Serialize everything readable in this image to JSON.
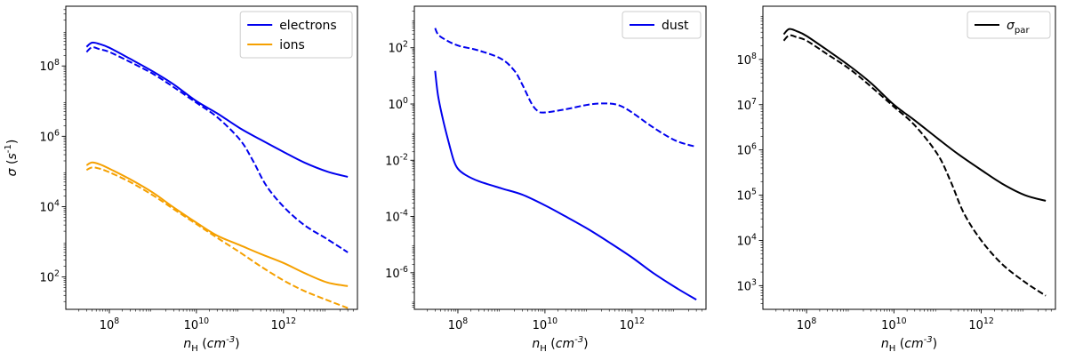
{
  "chart_data": [
    {
      "type": "line",
      "xlabel": "n_H (cm^-3)",
      "ylabel": "σ (s^-1)",
      "xscale": "log",
      "yscale": "log",
      "xlim": [
        10000000.0,
        50000000000000.0
      ],
      "ylim": [
        12.0,
        5000000000.0
      ],
      "xticks": [
        {
          "label": "10^8",
          "value": 100000000.0
        },
        {
          "label": "10^10",
          "value": 10000000000.0
        },
        {
          "label": "10^12",
          "value": 1000000000000.0
        }
      ],
      "yticks": [
        {
          "label": "10^2",
          "value": 100
        },
        {
          "label": "10^4",
          "value": 10000
        },
        {
          "label": "10^6",
          "value": 1000000
        },
        {
          "label": "10^8",
          "value": 100000000
        }
      ],
      "legend": {
        "position": "top-right",
        "entries": [
          {
            "label": "electrons",
            "color": "#0000ee",
            "style": "solid"
          },
          {
            "label": "ions",
            "color": "#f5a000",
            "style": "solid"
          }
        ]
      },
      "series": [
        {
          "name": "electrons",
          "color": "#0000ee",
          "dash": false,
          "x": [
            30000000.0,
            40000000.0,
            60000000.0,
            100000000.0,
            300000000.0,
            1000000000.0,
            3000000000.0,
            10000000000.0,
            30000000000.0,
            100000000000.0,
            300000000000.0,
            1000000000000.0,
            3000000000000.0,
            10000000000000.0,
            30000000000000.0
          ],
          "y": [
            350000000.0,
            460000000.0,
            420000000.0,
            330000000.0,
            160000000.0,
            70000000.0,
            30000000.0,
            10000000.0,
            4500000.0,
            1700000.0,
            800000.0,
            360000.0,
            180000.0,
            100000.0,
            70000.0
          ]
        },
        {
          "name": "electrons",
          "color": "#0000ee",
          "dash": true,
          "x": [
            30000000.0,
            40000000.0,
            60000000.0,
            100000000.0,
            300000000.0,
            1000000000.0,
            3000000000.0,
            10000000000.0,
            30000000000.0,
            100000000000.0,
            200000000000.0,
            400000000000.0,
            1000000000000.0,
            3000000000000.0,
            10000000000000.0,
            30000000000000.0
          ],
          "y": [
            250000000.0,
            340000000.0,
            300000000.0,
            250000000.0,
            130000000.0,
            60000000.0,
            25000000.0,
            9000000.0,
            3500000.0,
            800000.0,
            200000.0,
            40000.0,
            10000.0,
            3000.0,
            1200.0,
            500.0
          ]
        },
        {
          "name": "ions",
          "color": "#f5a000",
          "dash": false,
          "x": [
            30000000.0,
            40000000.0,
            60000000.0,
            100000000.0,
            300000000.0,
            1000000000.0,
            3000000000.0,
            10000000000.0,
            30000000000.0,
            100000000000.0,
            300000000000.0,
            1000000000000.0,
            3000000000000.0,
            10000000000000.0,
            30000000000000.0
          ],
          "y": [
            150000.0,
            180000.0,
            160000.0,
            120000.0,
            60000.0,
            25000.0,
            9500.0,
            3500.0,
            1500.0,
            800.0,
            450.0,
            250.0,
            130.0,
            70.0,
            55.0
          ]
        },
        {
          "name": "ions",
          "color": "#f5a000",
          "dash": true,
          "x": [
            30000000.0,
            40000000.0,
            60000000.0,
            100000000.0,
            300000000.0,
            1000000000.0,
            3000000000.0,
            10000000000.0,
            30000000000.0,
            100000000000.0,
            300000000000.0,
            1000000000000.0,
            3000000000000.0,
            10000000000000.0,
            30000000000000.0
          ],
          "y": [
            110000.0,
            130000.0,
            120000.0,
            95000.0,
            50000.0,
            21000.0,
            8500.0,
            3200.0,
            1300.0,
            500.0,
            200.0,
            80.0,
            40.0,
            22.0,
            13.0
          ]
        }
      ]
    },
    {
      "type": "line",
      "xlabel": "n_H (cm^-3)",
      "xscale": "log",
      "yscale": "log",
      "xlim": [
        10000000.0,
        50000000000000.0
      ],
      "ylim": [
        5e-08,
        3000.0
      ],
      "xticks": [
        {
          "label": "10^8",
          "value": 100000000.0
        },
        {
          "label": "10^10",
          "value": 10000000000.0
        },
        {
          "label": "10^12",
          "value": 1000000000000.0
        }
      ],
      "yticks": [
        {
          "label": "10^-6",
          "value": 1e-06
        },
        {
          "label": "10^-4",
          "value": 0.0001
        },
        {
          "label": "10^-2",
          "value": 0.01
        },
        {
          "label": "10^0",
          "value": 1
        },
        {
          "label": "10^2",
          "value": 100
        }
      ],
      "legend": {
        "position": "top-right",
        "entries": [
          {
            "label": "dust",
            "color": "#0000ee",
            "style": "solid"
          }
        ]
      },
      "series": [
        {
          "name": "dust",
          "color": "#0000ee",
          "dash": false,
          "x": [
            30000000.0,
            35000000.0,
            45000000.0,
            60000000.0,
            80000000.0,
            100000000.0,
            150000000.0,
            300000000.0,
            1000000000.0,
            3000000000.0,
            10000000000.0,
            30000000000.0,
            100000000000.0,
            300000000000.0,
            1000000000000.0,
            3000000000000.0,
            10000000000000.0,
            30000000000000.0
          ],
          "y": [
            15.0,
            2.0,
            0.3,
            0.05,
            0.01,
            0.005,
            0.003,
            0.0018,
            0.001,
            0.0006,
            0.00025,
            0.0001,
            3.5e-05,
            1.2e-05,
            3.5e-06,
            1e-06,
            3e-07,
            1.1e-07
          ]
        },
        {
          "name": "dust",
          "color": "#0000ee",
          "dash": true,
          "x": [
            30000000.0,
            35000000.0,
            50000000.0,
            100000000.0,
            300000000.0,
            1000000000.0,
            2000000000.0,
            3000000000.0,
            5000000000.0,
            7000000000.0,
            10000000000.0,
            30000000000.0,
            100000000000.0,
            250000000000.0,
            500000000000.0,
            1000000000000.0,
            3000000000000.0,
            10000000000000.0,
            30000000000000.0
          ],
          "y": [
            500.0,
            300.0,
            200.0,
            120.0,
            80.0,
            40.0,
            15.0,
            5.0,
            1.0,
            0.55,
            0.5,
            0.65,
            0.95,
            1.05,
            0.9,
            0.5,
            0.15,
            0.05,
            0.03
          ]
        }
      ]
    },
    {
      "type": "line",
      "xlabel": "n_H (cm^-3)",
      "xscale": "log",
      "yscale": "log",
      "xlim": [
        10000000.0,
        50000000000000.0
      ],
      "ylim": [
        300.0,
        1500000000.0
      ],
      "xticks": [
        {
          "label": "10^8",
          "value": 100000000.0
        },
        {
          "label": "10^10",
          "value": 10000000000.0
        },
        {
          "label": "10^12",
          "value": 1000000000000.0
        }
      ],
      "yticks": [
        {
          "label": "10^3",
          "value": 1000
        },
        {
          "label": "10^4",
          "value": 10000
        },
        {
          "label": "10^5",
          "value": 100000
        },
        {
          "label": "10^6",
          "value": 1000000
        },
        {
          "label": "10^7",
          "value": 10000000
        },
        {
          "label": "10^8",
          "value": 100000000
        }
      ],
      "legend": {
        "position": "top-right",
        "entries": [
          {
            "label": "σ_par",
            "color": "#000000",
            "style": "solid"
          }
        ]
      },
      "series": [
        {
          "name": "σ_par",
          "color": "#000000",
          "dash": false,
          "x": [
            30000000.0,
            40000000.0,
            60000000.0,
            100000000.0,
            300000000.0,
            1000000000.0,
            3000000000.0,
            10000000000.0,
            30000000000.0,
            100000000000.0,
            300000000000.0,
            1000000000000.0,
            3000000000000.0,
            10000000000000.0,
            30000000000000.0
          ],
          "y": [
            360000000.0,
            470000000.0,
            420000000.0,
            330000000.0,
            160000000.0,
            70000000.0,
            30000000.0,
            10000000.0,
            4500000.0,
            1800000.0,
            800000.0,
            360000.0,
            180000.0,
            100000.0,
            75000.0
          ]
        },
        {
          "name": "σ_par",
          "color": "#000000",
          "dash": true,
          "x": [
            30000000.0,
            40000000.0,
            60000000.0,
            100000000.0,
            300000000.0,
            1000000000.0,
            3000000000.0,
            10000000000.0,
            30000000000.0,
            100000000000.0,
            200000000000.0,
            400000000000.0,
            1000000000000.0,
            3000000000000.0,
            10000000000000.0,
            30000000000000.0
          ],
          "y": [
            260000000.0,
            340000000.0,
            310000000.0,
            260000000.0,
            130000000.0,
            60000000.0,
            25000000.0,
            9000000.0,
            3500000.0,
            800000.0,
            200000.0,
            40000.0,
            10000.0,
            3000.0,
            1200.0,
            600.0
          ]
        }
      ]
    }
  ]
}
